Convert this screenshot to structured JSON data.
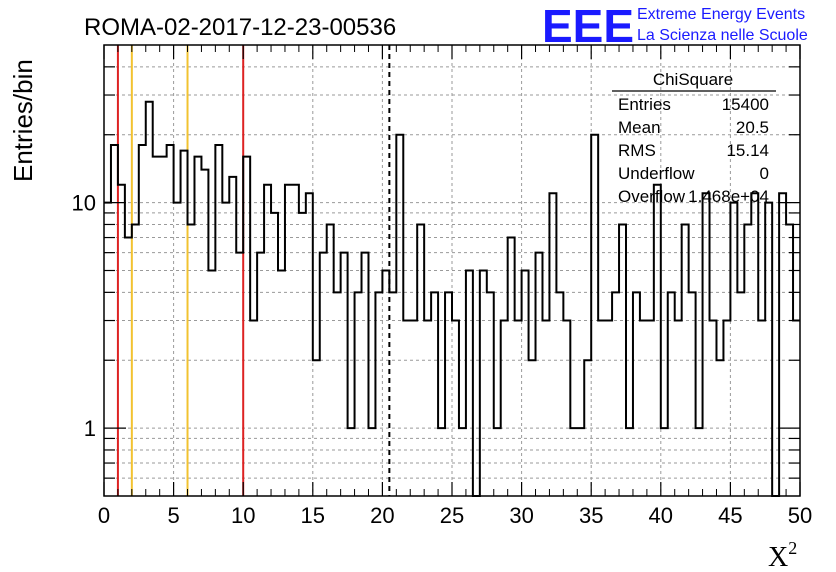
{
  "chart_data": {
    "type": "histogram",
    "title": "ROMA-02-2017-12-23-00536",
    "xlabel": "X",
    "xlabel_superscript": "2",
    "ylabel": "Entries/bin",
    "xlim": [
      0,
      50
    ],
    "ylim": [
      0.5,
      50
    ],
    "yscale": "log",
    "grid": true,
    "bin_width": 0.5,
    "x_ticks": [
      "0",
      "5",
      "10",
      "15",
      "20",
      "25",
      "30",
      "35",
      "40",
      "45",
      "50"
    ],
    "y_ticks": [
      {
        "value": 1,
        "label": "1"
      },
      {
        "value": 10,
        "label": "10"
      }
    ],
    "values": [
      10,
      18,
      12,
      7,
      8,
      18,
      28,
      16,
      16,
      18,
      10,
      17,
      8,
      16,
      14,
      5,
      18,
      10,
      13,
      6,
      16,
      3,
      6,
      12,
      9,
      5,
      12,
      12,
      9,
      11,
      2,
      6,
      8,
      4,
      6,
      1,
      4,
      6,
      1,
      4,
      5,
      4,
      20,
      3,
      3,
      8,
      3,
      4,
      1,
      4,
      3,
      1,
      5,
      0,
      5,
      4,
      1,
      3,
      7,
      3,
      5,
      2,
      6,
      3,
      11,
      4,
      3,
      1,
      1,
      2,
      20,
      3,
      3,
      4,
      8,
      1,
      4,
      3,
      3,
      12,
      1,
      4,
      3,
      8,
      4,
      1,
      11,
      3,
      2,
      3,
      10,
      4,
      8,
      11,
      3,
      10,
      0,
      11,
      8,
      3
    ],
    "vertical_lines": [
      {
        "x": 1,
        "color": "#dd2222",
        "style": "solid"
      },
      {
        "x": 2,
        "color": "#f2c230",
        "style": "solid"
      },
      {
        "x": 6,
        "color": "#f2c230",
        "style": "solid"
      },
      {
        "x": 10,
        "color": "#dd2222",
        "style": "solid"
      },
      {
        "x": 20.5,
        "color": "#000000",
        "style": "dashed"
      }
    ],
    "stats_box": {
      "name": "ChiSquare",
      "rows": [
        {
          "label": "Entries",
          "value": "15400"
        },
        {
          "label": "Mean",
          "value": "20.5"
        },
        {
          "label": "RMS",
          "value": "15.14"
        },
        {
          "label": "Underflow",
          "value": "0"
        },
        {
          "label": "Overflow",
          "value": "1.468e+04"
        }
      ]
    }
  },
  "logo": {
    "letters": "EEE",
    "line1": "Extreme Energy Events",
    "line2": "La Scienza nelle Scuole",
    "color": "#1a1aff"
  }
}
